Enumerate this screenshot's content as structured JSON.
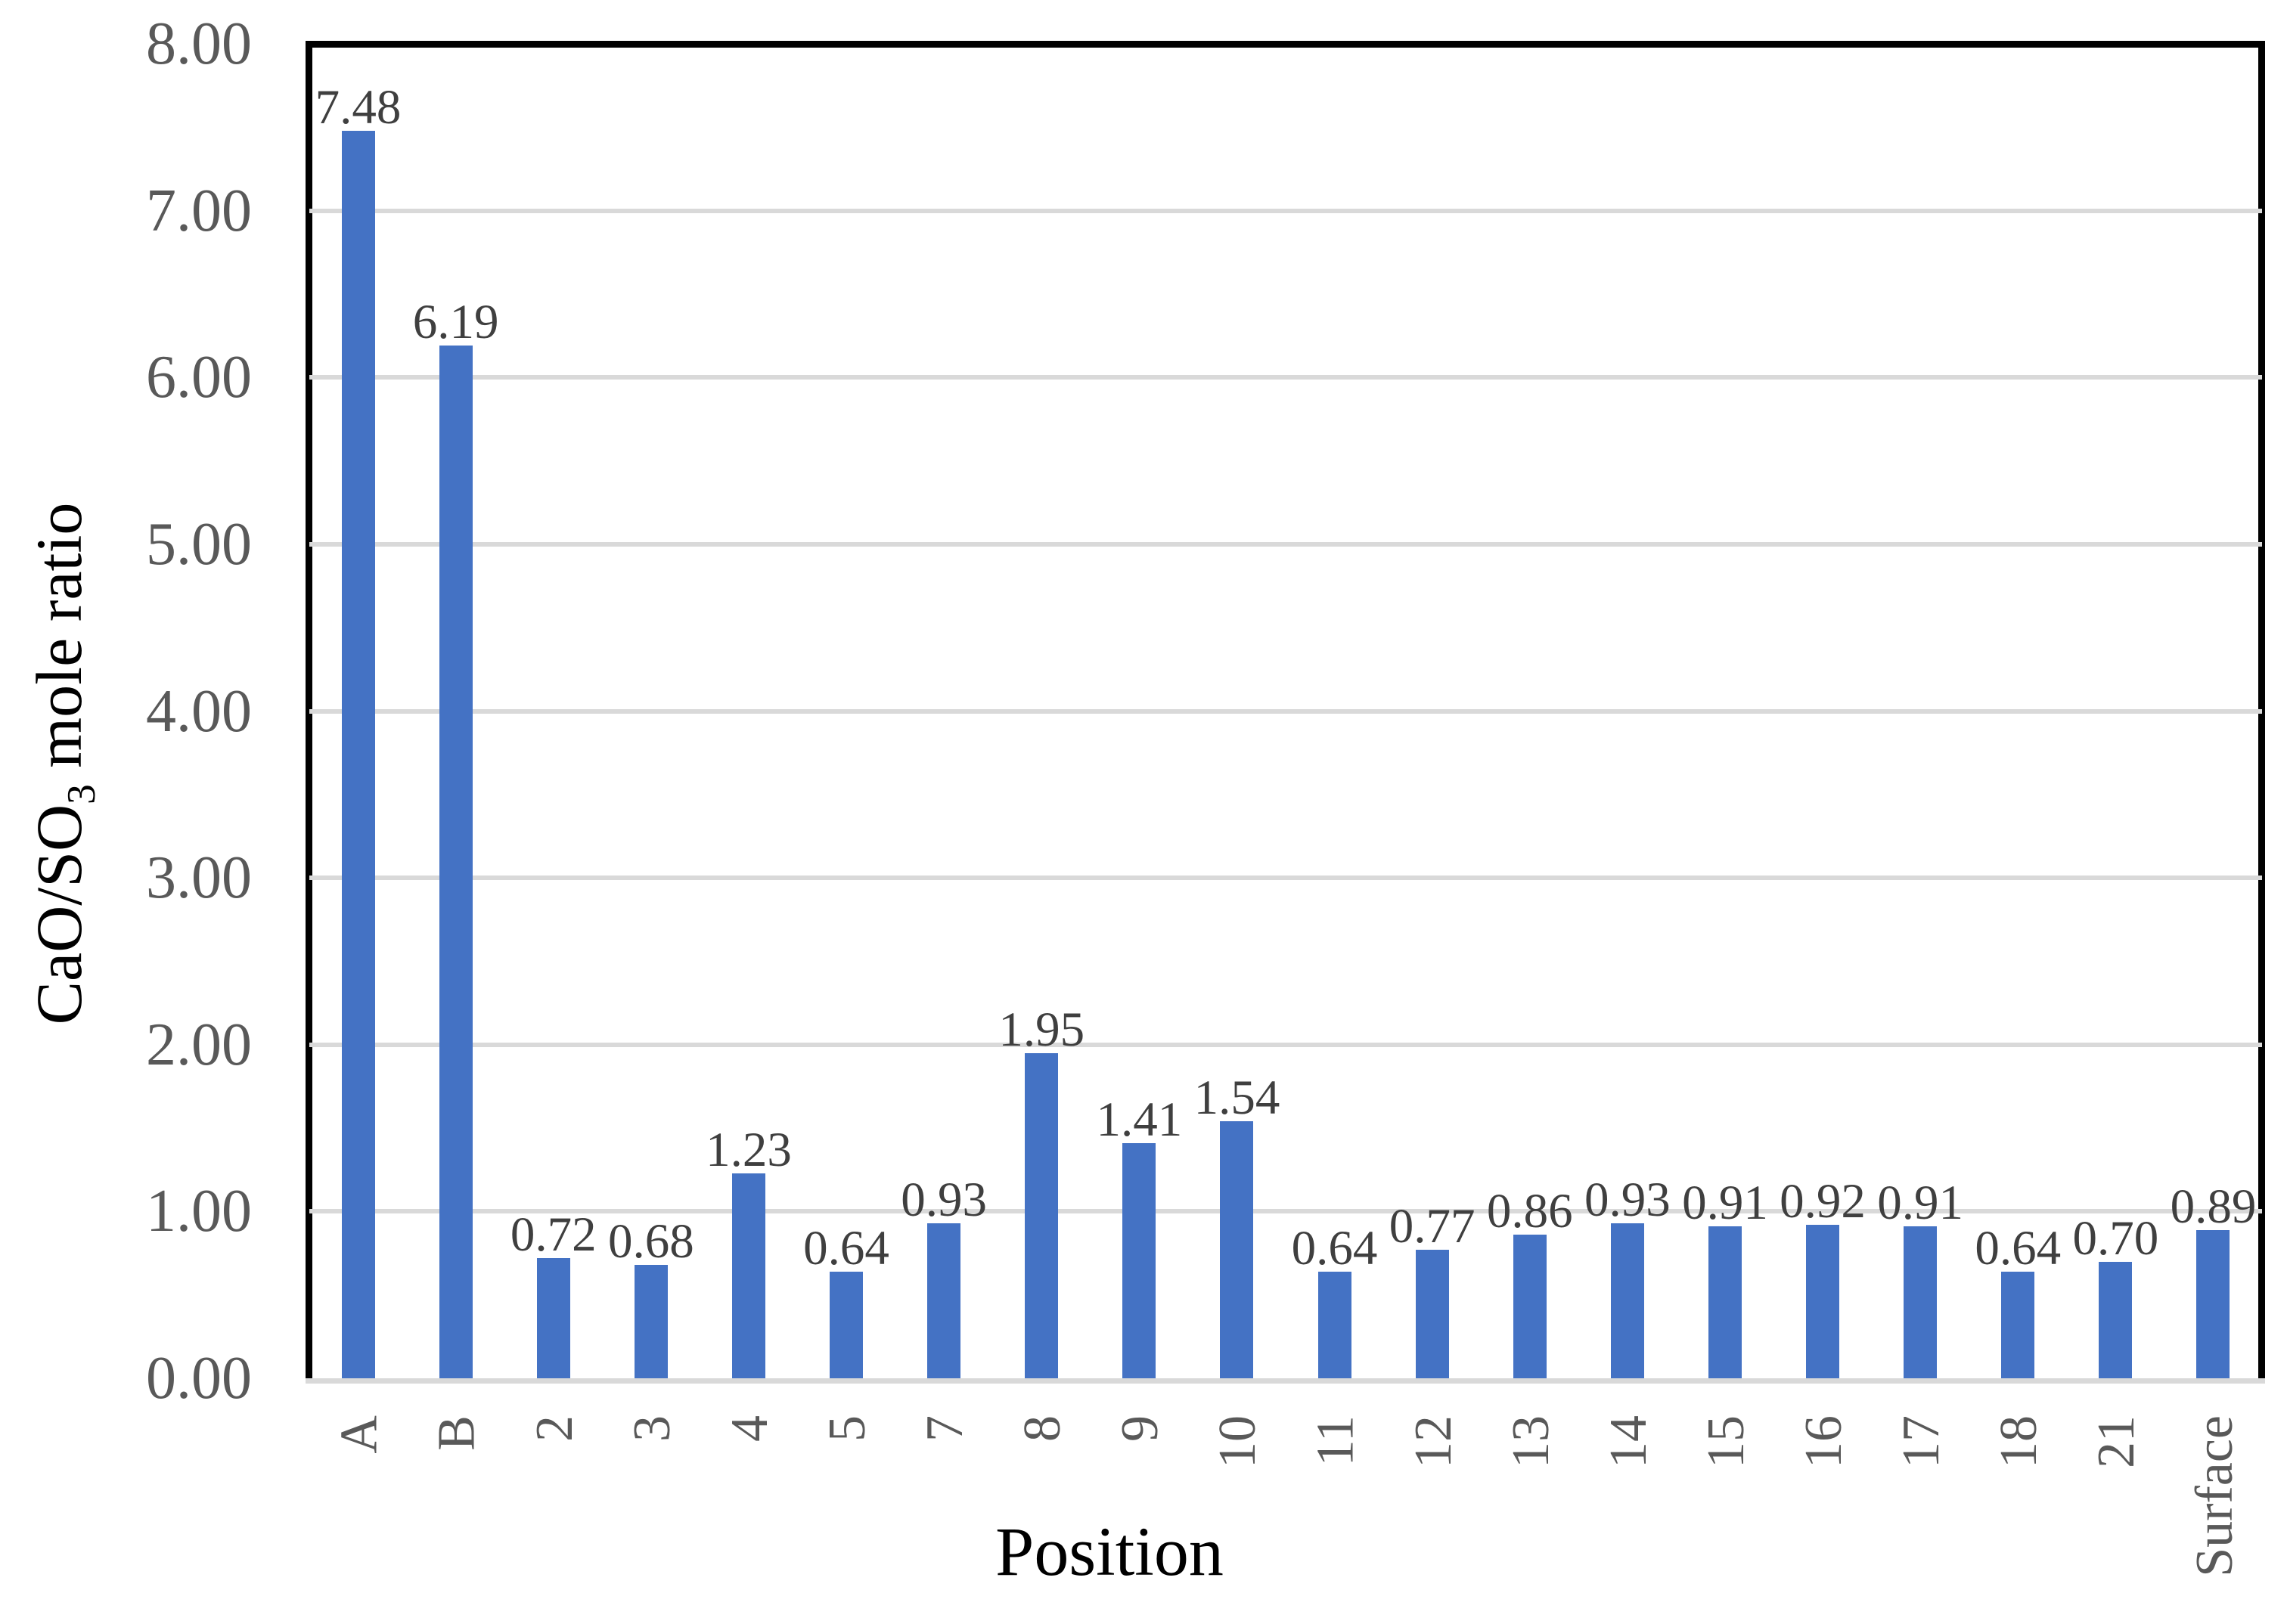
{
  "figure": {
    "background_color": "#FFFFFF"
  },
  "chart_data": {
    "type": "bar",
    "title": "",
    "xlabel": "Position",
    "ylabel": "CaO/SO3 mole ratio",
    "ylabel_parts": {
      "base": "CaO/SO",
      "sub": "3",
      "rest": " mole ratio"
    },
    "categories": [
      "A",
      "B",
      "2",
      "3",
      "4",
      "5",
      "7",
      "8",
      "9",
      "10",
      "11",
      "12",
      "13",
      "14",
      "15",
      "16",
      "17",
      "18",
      "21",
      "Surface"
    ],
    "values": [
      7.48,
      6.19,
      0.72,
      0.68,
      1.23,
      0.64,
      0.93,
      1.95,
      1.41,
      1.54,
      0.64,
      0.77,
      0.86,
      0.93,
      0.91,
      0.92,
      0.91,
      0.64,
      0.7,
      0.89
    ],
    "value_labels": [
      "7.48",
      "6.19",
      "0.72",
      "0.68",
      "1.23",
      "0.64",
      "0.93",
      "1.95",
      "1.41",
      "1.54",
      "0.64",
      "0.77",
      "0.86",
      "0.93",
      "0.91",
      "0.92",
      "0.91",
      "0.64",
      "0.70",
      "0.89"
    ],
    "ylim": [
      0,
      8
    ],
    "ytick_step": 1.0,
    "ytick_labels": [
      "0.00",
      "1.00",
      "2.00",
      "3.00",
      "4.00",
      "5.00",
      "6.00",
      "7.00",
      "8.00"
    ],
    "grid": "horizontal-only",
    "legend": "none",
    "bar_labels_position": "outside-end",
    "category_label_rotation_deg": -90,
    "colors": {
      "bar": "#4472C4",
      "gridline": "#D9D9D9",
      "axis_line": "#D9D9D9",
      "plot_border": "#000000",
      "tick_label": "#595959",
      "category_label": "#595959",
      "data_label": "#3F3F3F",
      "axis_title": "#000000"
    }
  }
}
